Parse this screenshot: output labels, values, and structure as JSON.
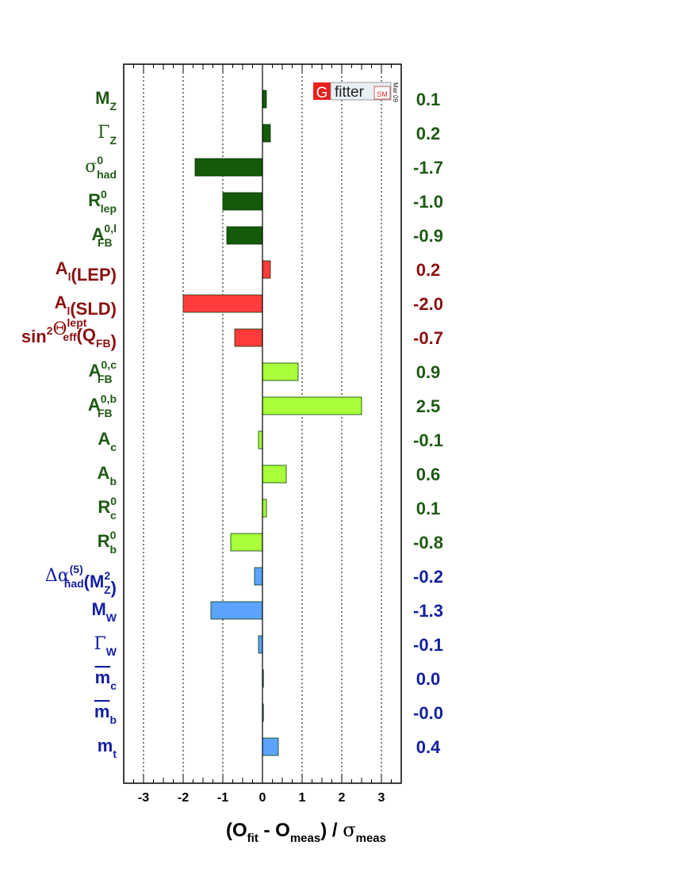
{
  "chart_data": {
    "type": "bar",
    "orientation": "horizontal",
    "xlabel": "(O_fit - O_meas) / σ_meas",
    "xlim": [
      -3.5,
      3.5
    ],
    "xticks": [
      "-3",
      "-2",
      "-1",
      "0",
      "1",
      "2",
      "3"
    ],
    "grid": "vertical dotted",
    "categories": [
      {
        "label": "M",
        "sub": "Z",
        "sup": ""
      },
      {
        "label": "Γ",
        "sub": "Z",
        "sup": "",
        "greek": true
      },
      {
        "label": "σ",
        "sub": "had",
        "sup": "0",
        "greek": true
      },
      {
        "label": "R",
        "sub": "lep",
        "sup": "0"
      },
      {
        "label": "A",
        "sub": "FB",
        "sup": "0,l"
      },
      {
        "label": "A",
        "sub": "l",
        "sup": "",
        "tail": "(LEP)"
      },
      {
        "label": "A",
        "sub": "l",
        "sup": "",
        "tail": "(SLD)"
      },
      {
        "label": "sin",
        "sub": "",
        "sup": "2",
        "extra": "Θ",
        "extra_sub": "eff",
        "extra_sup": "lept",
        "tail": "(Q",
        "tail_sub": "FB",
        "tail2": ")"
      },
      {
        "label": "A",
        "sub": "FB",
        "sup": "0,c"
      },
      {
        "label": "A",
        "sub": "FB",
        "sup": "0,b"
      },
      {
        "label": "A",
        "sub": "c",
        "sup": ""
      },
      {
        "label": "A",
        "sub": "b",
        "sup": ""
      },
      {
        "label": "R",
        "sub": "c",
        "sup": "0"
      },
      {
        "label": "R",
        "sub": "b",
        "sup": "0"
      },
      {
        "label": "Δα",
        "sub": "had",
        "sup": "(5)",
        "tail": "(M",
        "tail_sub": "Z",
        "tail_sup": "2",
        "tail2": ")",
        "greek": true
      },
      {
        "label": "M",
        "sub": "W",
        "sup": ""
      },
      {
        "label": "Γ",
        "sub": "W",
        "sup": "",
        "greek": true
      },
      {
        "label": "m",
        "sub": "c",
        "sup": "",
        "overline": true
      },
      {
        "label": "m",
        "sub": "b",
        "sup": "",
        "overline": true
      },
      {
        "label": "m",
        "sub": "t",
        "sup": ""
      }
    ],
    "values": [
      0.1,
      0.2,
      -1.7,
      -1.0,
      -0.9,
      0.2,
      -2.0,
      -0.7,
      0.9,
      2.5,
      -0.1,
      0.6,
      0.1,
      -0.8,
      -0.2,
      -1.3,
      -0.1,
      0.0,
      -0.0,
      0.4
    ],
    "value_labels": [
      "0.1",
      "0.2",
      "-1.7",
      "-1.0",
      "-0.9",
      "0.2",
      "-2.0",
      "-0.7",
      "0.9",
      "2.5",
      "-0.1",
      "0.6",
      "0.1",
      "-0.8",
      "-0.2",
      "-1.3",
      "-0.1",
      "0.0",
      "-0.0",
      "0.4"
    ],
    "groups": [
      {
        "rows": [
          0,
          4
        ],
        "bar_fill": "#145a0a",
        "label_color": "#1e5a14"
      },
      {
        "rows": [
          5,
          7
        ],
        "bar_fill": "#ff3b3b",
        "label_color": "#8b1010"
      },
      {
        "rows": [
          8,
          13
        ],
        "bar_fill": "#a8ff3a",
        "label_color": "#1e5a14"
      },
      {
        "rows": [
          14,
          19
        ],
        "bar_fill": "#5ba3ff",
        "label_color": "#1420a0"
      }
    ],
    "logo": {
      "letter": "G",
      "text": "fitter",
      "badge": "SM",
      "date": "Mar 09"
    }
  }
}
